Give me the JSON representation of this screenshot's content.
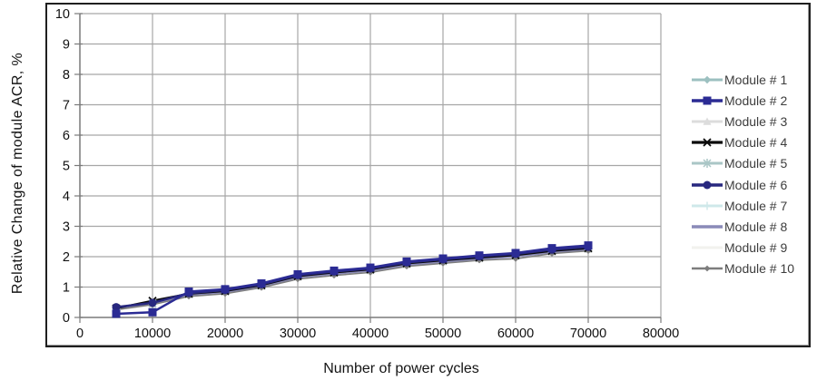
{
  "figure": {
    "background": "#ffffff",
    "frame_color": "#1f1f1f"
  },
  "chart_data": {
    "type": "line",
    "title": "",
    "xlabel": "Number of power cycles",
    "ylabel": "Relative Change of module ACR, %",
    "xlim": [
      0,
      80000
    ],
    "ylim": [
      0,
      10
    ],
    "grid": true,
    "grid_color": "#a6a6a6",
    "axis_color": "#7a7a7a",
    "tick_label_color": "#111111",
    "legend_position": "right",
    "xtick_labels": [
      "0",
      "10000",
      "20000",
      "30000",
      "40000",
      "50000",
      "60000",
      "70000",
      "80000"
    ],
    "ytick_labels": [
      "0",
      "1",
      "2",
      "3",
      "4",
      "5",
      "6",
      "7",
      "8",
      "9",
      "10"
    ],
    "x": [
      5000,
      10000,
      15000,
      20000,
      25000,
      30000,
      35000,
      40000,
      45000,
      50000,
      55000,
      60000,
      65000,
      70000
    ],
    "series": [
      {
        "name": "Module # 1",
        "color": "#9cc0c0",
        "marker": "diamond",
        "line_width": 2,
        "values": [
          0.28,
          0.44,
          0.76,
          0.86,
          1.04,
          1.34,
          1.46,
          1.56,
          1.75,
          1.85,
          1.95,
          2.03,
          2.17,
          2.26
        ]
      },
      {
        "name": "Module # 2",
        "color": "#2b2b94",
        "marker": "square",
        "line_width": 2.5,
        "values": [
          0.12,
          0.17,
          0.85,
          0.93,
          1.12,
          1.42,
          1.54,
          1.64,
          1.84,
          1.94,
          2.04,
          2.12,
          2.28,
          2.37
        ]
      },
      {
        "name": "Module # 3",
        "color": "#dcdcdc",
        "marker": "triangle",
        "line_width": 2,
        "values": [
          0.27,
          0.43,
          0.75,
          0.85,
          1.02,
          1.32,
          1.44,
          1.54,
          1.73,
          1.83,
          1.93,
          2.01,
          2.15,
          2.24
        ]
      },
      {
        "name": "Module # 4",
        "color": "#0a0a0a",
        "marker": "x",
        "line_width": 2.2,
        "values": [
          0.3,
          0.55,
          0.78,
          0.87,
          1.06,
          1.36,
          1.48,
          1.58,
          1.78,
          1.88,
          1.97,
          2.05,
          2.19,
          2.28
        ]
      },
      {
        "name": "Module # 5",
        "color": "#aac6c6",
        "marker": "asterisk",
        "line_width": 2,
        "values": [
          0.29,
          0.46,
          0.77,
          0.86,
          1.05,
          1.35,
          1.47,
          1.57,
          1.76,
          1.86,
          1.96,
          2.04,
          2.18,
          2.27
        ]
      },
      {
        "name": "Module # 6",
        "color": "#28287f",
        "marker": "circle",
        "line_width": 2.5,
        "values": [
          0.34,
          0.48,
          0.8,
          0.9,
          1.09,
          1.39,
          1.51,
          1.61,
          1.81,
          1.91,
          2.01,
          2.09,
          2.23,
          2.32
        ]
      },
      {
        "name": "Module # 7",
        "color": "#cfe8ea",
        "marker": "plus",
        "line_width": 2,
        "values": [
          0.27,
          0.44,
          0.75,
          0.85,
          1.03,
          1.33,
          1.45,
          1.55,
          1.74,
          1.84,
          1.94,
          2.02,
          2.16,
          2.25
        ]
      },
      {
        "name": "Module # 8",
        "color": "#8a8ab8",
        "marker": "none",
        "line_width": 2.5,
        "values": [
          0.28,
          0.45,
          0.74,
          0.84,
          1.02,
          1.32,
          1.44,
          1.54,
          1.73,
          1.83,
          1.93,
          2.01,
          2.15,
          2.24
        ]
      },
      {
        "name": "Module # 9",
        "color": "#f2f2ee",
        "marker": "none",
        "line_width": 2,
        "values": [
          0.26,
          0.42,
          0.73,
          0.83,
          1.01,
          1.31,
          1.43,
          1.53,
          1.72,
          1.82,
          1.92,
          2.0,
          2.14,
          2.23
        ]
      },
      {
        "name": "Module # 10",
        "color": "#7d7d7d",
        "marker": "diamond-small",
        "line_width": 1.5,
        "values": [
          0.25,
          0.42,
          0.69,
          0.78,
          0.98,
          1.26,
          1.38,
          1.48,
          1.68,
          1.78,
          1.88,
          1.93,
          2.1,
          2.19
        ]
      }
    ]
  }
}
